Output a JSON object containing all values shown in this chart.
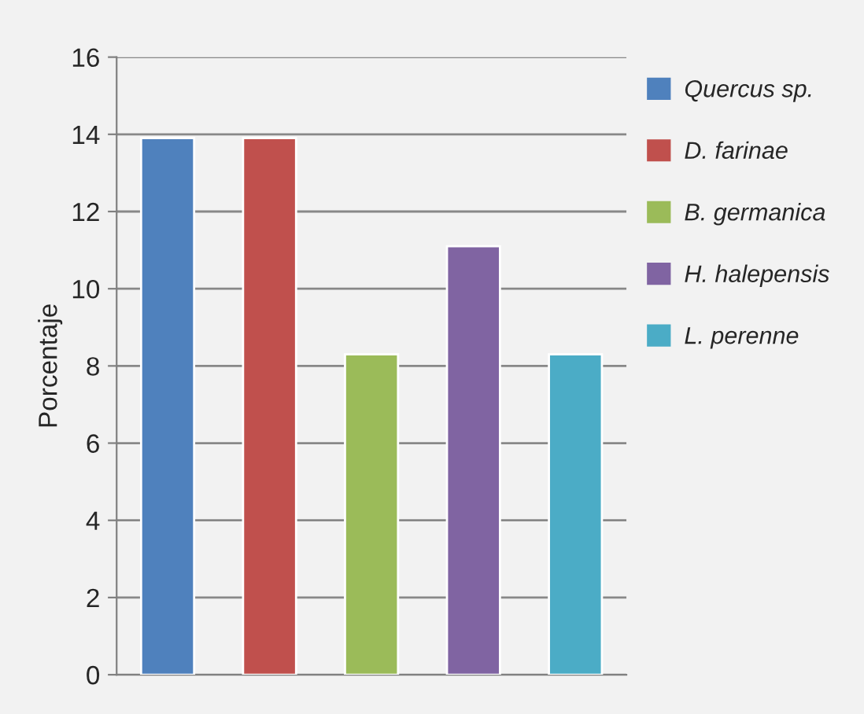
{
  "chart_data": {
    "type": "bar",
    "ylabel": "Porcentaje",
    "categories": [
      null,
      null,
      null,
      null,
      null
    ],
    "series": [
      {
        "name": "Quercus sp.",
        "color": "#4f81bd",
        "values": [
          13.9,
          null,
          null,
          null,
          null
        ]
      },
      {
        "name": "D. farinae",
        "color": "#c0504d",
        "values": [
          null,
          13.9,
          null,
          null,
          null
        ]
      },
      {
        "name": "B. germanica",
        "color": "#9bbb59",
        "values": [
          null,
          null,
          8.3,
          null,
          null
        ]
      },
      {
        "name": "H. halepensis",
        "color": "#8064a2",
        "values": [
          null,
          null,
          null,
          11.1,
          null
        ]
      },
      {
        "name": "L. perenne",
        "color": "#4bacc6",
        "values": [
          null,
          null,
          null,
          null,
          8.3
        ]
      }
    ],
    "ylim": [
      0,
      16
    ],
    "yticks": [
      0,
      2,
      4,
      6,
      8,
      10,
      12,
      14,
      16
    ],
    "grid": "y",
    "legend": "right"
  }
}
